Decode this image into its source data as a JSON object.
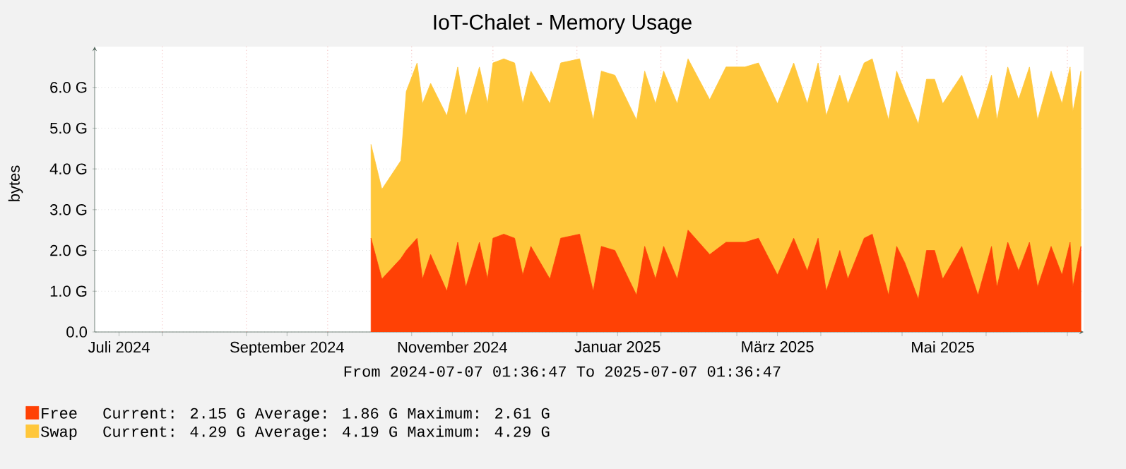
{
  "chart_data": {
    "type": "area",
    "title": "IoT-Chalet - Memory Usage",
    "ylabel": "bytes",
    "stacked": true,
    "grid": true,
    "legend": "bottom left",
    "xlim": [
      "2024-07-07",
      "2025-07-07"
    ],
    "xticks": [
      {
        "value": "2024-07-16",
        "label": "Juli 2024"
      },
      {
        "value": "2024-09-16",
        "label": "September 2024"
      },
      {
        "value": "2024-11-16",
        "label": "November 2024"
      },
      {
        "value": "2025-01-16",
        "label": "Januar 2025"
      },
      {
        "value": "2025-03-16",
        "label": "März 2025"
      },
      {
        "value": "2025-05-16",
        "label": "Mai 2025"
      },
      {
        "value": "2024-08-01",
        "label": null
      },
      {
        "value": "2024-09-01",
        "label": null
      },
      {
        "value": "2024-10-01",
        "label": null
      },
      {
        "value": "2024-11-01",
        "label": null
      },
      {
        "value": "2024-12-01",
        "label": null
      },
      {
        "value": "2025-01-01",
        "label": null
      },
      {
        "value": "2025-02-01",
        "label": null
      },
      {
        "value": "2025-03-01",
        "label": null
      },
      {
        "value": "2025-04-01",
        "label": null
      },
      {
        "value": "2025-05-01",
        "label": null
      },
      {
        "value": "2025-06-01",
        "label": null
      },
      {
        "value": "2025-07-01",
        "label": null
      }
    ],
    "ylim": [
      0,
      7
    ],
    "yticks": [
      {
        "value": 0,
        "label": "0.0"
      },
      {
        "value": 1,
        "label": "1.0 G"
      },
      {
        "value": 2,
        "label": "2.0 G"
      },
      {
        "value": 3,
        "label": "3.0 G"
      },
      {
        "value": 4,
        "label": "4.0 G"
      },
      {
        "value": 5,
        "label": "5.0 G"
      },
      {
        "value": 6,
        "label": "6.0 G"
      }
    ],
    "x": [
      "2024-10-17",
      "2024-10-21",
      "2024-10-28",
      "2024-10-30",
      "2024-11-03",
      "2024-11-05",
      "2024-11-08",
      "2024-11-14",
      "2024-11-18",
      "2024-11-21",
      "2024-11-26",
      "2024-11-29",
      "2024-12-01",
      "2024-12-05",
      "2024-12-09",
      "2024-12-12",
      "2024-12-15",
      "2024-12-22",
      "2024-12-26",
      "2025-01-02",
      "2025-01-07",
      "2025-01-10",
      "2025-01-15",
      "2025-01-23",
      "2025-01-26",
      "2025-01-30",
      "2025-02-02",
      "2025-02-07",
      "2025-02-11",
      "2025-02-19",
      "2025-02-25",
      "2025-03-04",
      "2025-03-09",
      "2025-03-16",
      "2025-03-22",
      "2025-03-27",
      "2025-03-31",
      "2025-04-03",
      "2025-04-08",
      "2025-04-11",
      "2025-04-17",
      "2025-04-20",
      "2025-04-26",
      "2025-04-29",
      "2025-05-02",
      "2025-05-07",
      "2025-05-10",
      "2025-05-13",
      "2025-05-16",
      "2025-05-23",
      "2025-05-29",
      "2025-06-03",
      "2025-06-05",
      "2025-06-09",
      "2025-06-13",
      "2025-06-17",
      "2025-06-20",
      "2025-06-25",
      "2025-06-29",
      "2025-07-02",
      "2025-07-03",
      "2025-07-06"
    ],
    "series": [
      {
        "name": "Free",
        "color": "#ff4105",
        "values": [
          2.3,
          1.3,
          1.8,
          2.0,
          2.3,
          1.3,
          1.9,
          1.0,
          2.2,
          1.1,
          2.2,
          1.3,
          2.3,
          2.4,
          2.3,
          1.4,
          2.1,
          1.3,
          2.3,
          2.4,
          1.0,
          2.1,
          2.0,
          0.9,
          2.1,
          1.3,
          2.1,
          1.3,
          2.5,
          1.9,
          2.2,
          2.2,
          2.3,
          1.4,
          2.3,
          1.5,
          2.3,
          1.0,
          2.0,
          1.3,
          2.3,
          2.4,
          0.9,
          2.1,
          1.7,
          0.8,
          2.0,
          2.0,
          1.3,
          2.1,
          0.9,
          2.1,
          1.1,
          2.2,
          1.5,
          2.2,
          1.1,
          2.1,
          1.4,
          2.2,
          1.1,
          2.1
        ]
      },
      {
        "name": "Swap",
        "color": "#ffc73b",
        "values": [
          2.3,
          2.2,
          2.4,
          3.9,
          4.3,
          4.3,
          4.2,
          4.3,
          4.3,
          4.2,
          4.3,
          4.3,
          4.3,
          4.3,
          4.3,
          4.2,
          4.3,
          4.3,
          4.3,
          4.3,
          4.2,
          4.3,
          4.3,
          4.3,
          4.3,
          4.3,
          4.3,
          4.3,
          4.2,
          3.8,
          4.3,
          4.3,
          4.3,
          4.2,
          4.3,
          4.1,
          4.3,
          4.3,
          4.3,
          4.3,
          4.3,
          4.3,
          4.3,
          4.3,
          4.2,
          4.3,
          4.2,
          4.2,
          4.3,
          4.2,
          4.3,
          4.2,
          4.1,
          4.3,
          4.2,
          4.3,
          4.1,
          4.3,
          4.2,
          4.3,
          4.3,
          4.3
        ]
      }
    ],
    "annotations": [
      "From 2024-07-07 01:36:47 To 2025-07-07 01:36:47",
      "Current: 2.15 G Average: 1.86 G Maximum: 2.61 G",
      "Current: 4.29 G Average: 4.19 G Maximum: 4.29 G"
    ]
  }
}
